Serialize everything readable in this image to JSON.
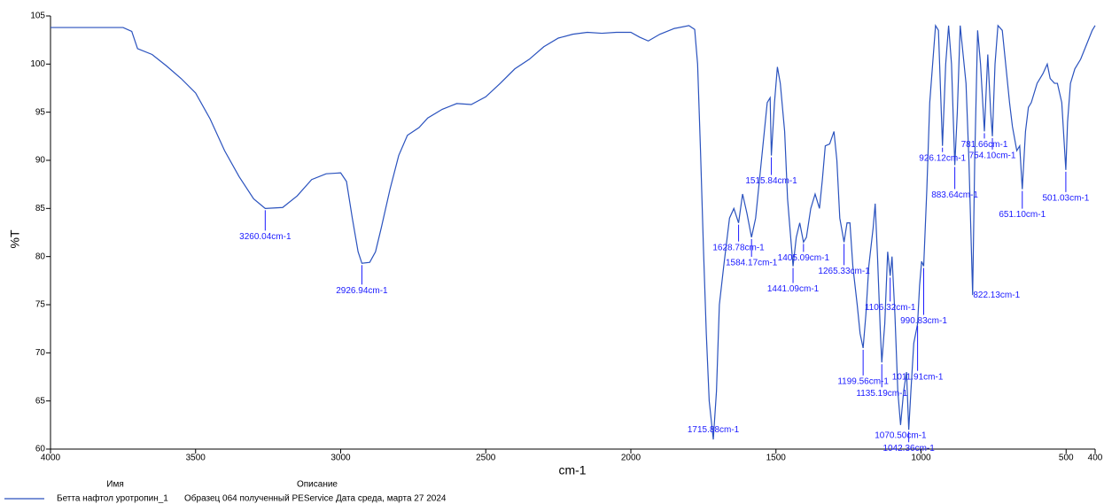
{
  "chart_data": {
    "type": "line",
    "xlabel": "cm-1",
    "ylabel": "%T",
    "xlim": [
      4000,
      400
    ],
    "ylim": [
      60,
      105
    ],
    "xticks": [
      4000,
      3500,
      3000,
      2500,
      2000,
      1500,
      1000,
      500,
      400
    ],
    "yticks": [
      60,
      65,
      70,
      75,
      80,
      85,
      90,
      95,
      100,
      105
    ],
    "legend_headers": [
      "Имя",
      "Описание"
    ],
    "series": [
      {
        "name": "Бетта нафтол уротропин_1",
        "description": "Образец 064 полученный PEService Дата среда, марта 27 2024",
        "color": "#2a52be",
        "x": [
          4000,
          3900,
          3800,
          3750,
          3720,
          3700,
          3650,
          3600,
          3550,
          3500,
          3450,
          3400,
          3350,
          3300,
          3260.04,
          3200,
          3150,
          3100,
          3050,
          3000,
          2980,
          2960,
          2940,
          2926.94,
          2900,
          2880,
          2860,
          2830,
          2800,
          2770,
          2730,
          2700,
          2650,
          2600,
          2550,
          2500,
          2450,
          2400,
          2350,
          2300,
          2250,
          2200,
          2150,
          2100,
          2050,
          2000,
          1970,
          1940,
          1900,
          1850,
          1800,
          1780,
          1770,
          1760,
          1750,
          1740,
          1730,
          1715.88,
          1705,
          1695,
          1680,
          1660,
          1645,
          1628.78,
          1615,
          1600,
          1584.17,
          1570,
          1550,
          1530,
          1520,
          1515.84,
          1505,
          1495,
          1485,
          1470,
          1460,
          1441.09,
          1430,
          1418,
          1405.09,
          1395,
          1380,
          1365,
          1350,
          1340,
          1330,
          1315,
          1300,
          1290,
          1280,
          1265.33,
          1255,
          1245,
          1235,
          1220,
          1210,
          1199.56,
          1190,
          1180,
          1165,
          1158,
          1150,
          1140,
          1135.19,
          1125,
          1115,
          1106.32,
          1100,
          1090,
          1080,
          1070.5,
          1060,
          1050,
          1042.36,
          1035,
          1025,
          1011.91,
          1005,
          998,
          990.83,
          980,
          970,
          960,
          950,
          940,
          926.12,
          915,
          905,
          895,
          883.64,
          875,
          865,
          855,
          845,
          835,
          822.13,
          815,
          805,
          795,
          781.66,
          770,
          760,
          754.1,
          745,
          735,
          720,
          705,
          695,
          685,
          670,
          660,
          651.1,
          640,
          630,
          620,
          600,
          580,
          565,
          555,
          540,
          530,
          515,
          501.03,
          495,
          485,
          470,
          450,
          430,
          410,
          400
        ],
        "values": [
          103.8,
          103.8,
          103.8,
          103.8,
          103.4,
          101.6,
          101,
          99.8,
          98.5,
          97,
          94.3,
          91,
          88.3,
          86,
          85.0,
          85.1,
          86.3,
          88,
          88.6,
          88.7,
          87.8,
          84,
          80.5,
          79.3,
          79.4,
          80.5,
          83,
          87,
          90.5,
          92.6,
          93.4,
          94.4,
          95.3,
          95.9,
          95.8,
          96.6,
          98,
          99.5,
          100.5,
          101.8,
          102.7,
          103.1,
          103.3,
          103.2,
          103.3,
          103.3,
          102.8,
          102.4,
          103.1,
          103.7,
          104,
          103.6,
          100,
          91,
          81,
          72,
          65,
          61,
          66,
          75,
          79,
          84,
          85,
          83.5,
          86.5,
          84.5,
          82,
          84,
          90,
          96,
          96.5,
          90.5,
          96,
          99.7,
          98,
          93,
          86,
          79,
          82,
          83.5,
          81.5,
          82,
          85,
          86.5,
          85,
          88,
          91.5,
          91.7,
          93,
          90,
          84,
          81.5,
          83.5,
          83.5,
          79,
          75,
          72,
          70.5,
          74,
          79,
          83,
          85.5,
          80,
          72,
          69,
          73,
          80.5,
          78,
          80,
          74,
          66,
          62.5,
          66,
          68,
          62,
          66,
          71,
          73,
          77,
          79.5,
          79,
          87,
          96,
          100,
          104,
          103.5,
          91.5,
          100,
          104,
          100,
          89.5,
          95,
          104,
          101,
          98,
          90,
          76,
          90,
          103.5,
          100,
          93,
          101,
          95,
          92.5,
          100,
          104,
          103.5,
          99,
          96,
          93.5,
          91,
          91.5,
          87,
          93,
          95.5,
          96,
          98,
          99,
          100,
          98.5,
          98,
          98,
          96,
          89,
          94,
          98,
          99.5,
          100.5,
          102,
          103.5,
          104
        ]
      }
    ],
    "annotations": [
      {
        "text": "3260.04cm-1",
        "x": 3260.04,
        "y": 85.0
      },
      {
        "text": "2926.94cm-1",
        "x": 2926.94,
        "y": 79.3
      },
      {
        "text": "1715.88cm-1",
        "x": 1715.88,
        "y": 61
      },
      {
        "text": "1628.78cm-1",
        "x": 1628.78,
        "y": 83.5
      },
      {
        "text": "1584.17cm-1",
        "x": 1584.17,
        "y": 82
      },
      {
        "text": "1515.84cm-1",
        "x": 1515.84,
        "y": 90.5
      },
      {
        "text": "1441.09cm-1",
        "x": 1441.09,
        "y": 79
      },
      {
        "text": "1405.09cm-1",
        "x": 1405.09,
        "y": 81.5
      },
      {
        "text": "1265.33cm-1",
        "x": 1265.33,
        "y": 81.5
      },
      {
        "text": "1199.56cm-1",
        "x": 1199.56,
        "y": 70.5
      },
      {
        "text": "1135.19cm-1",
        "x": 1135.19,
        "y": 69
      },
      {
        "text": "1106.32cm-1",
        "x": 1106.32,
        "y": 78
      },
      {
        "text": "1070.50cm-1",
        "x": 1070.5,
        "y": 62.5
      },
      {
        "text": "1042.36cm-1",
        "x": 1042.36,
        "y": 62
      },
      {
        "text": "1011.91cm-1",
        "x": 1011.91,
        "y": 73
      },
      {
        "text": "990.83cm-1",
        "x": 990.83,
        "y": 79
      },
      {
        "text": "926.12cm-1",
        "x": 926.12,
        "y": 91.5
      },
      {
        "text": "883.64cm-1",
        "x": 883.64,
        "y": 89.5
      },
      {
        "text": "822.13cm-1",
        "x": 822.13,
        "y": 76
      },
      {
        "text": "781.66cm-1",
        "x": 781.66,
        "y": 93
      },
      {
        "text": "754.10cm-1",
        "x": 754.1,
        "y": 92.5
      },
      {
        "text": "651.10cm-1",
        "x": 651.1,
        "y": 87
      },
      {
        "text": "501.03cm-1",
        "x": 501.03,
        "y": 89
      }
    ]
  }
}
